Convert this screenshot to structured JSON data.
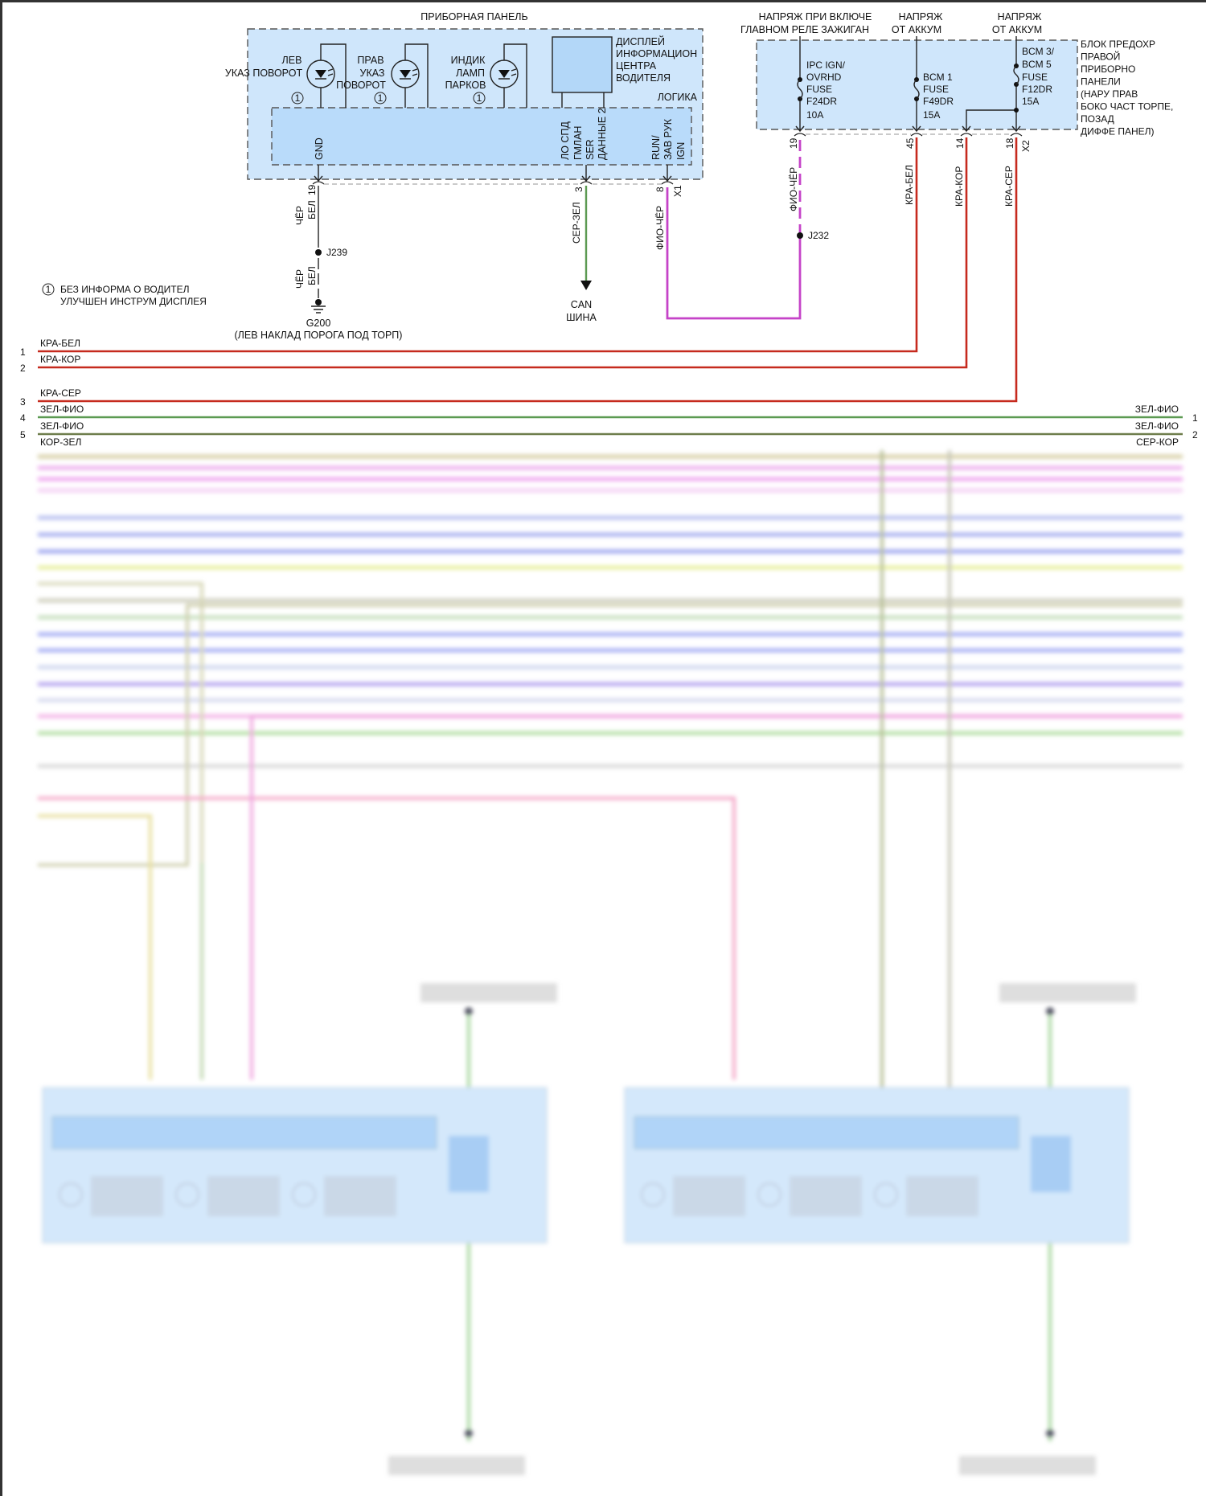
{
  "instrument_panel": {
    "title": "ПРИБОРНАЯ ПАНЕЛЬ",
    "left_turn": [
      "ЛЕВ",
      "УКАЗ ПОВОРОТ"
    ],
    "right_turn": [
      "ПРАВ",
      "УКАЗ",
      "ПОВОРОТ"
    ],
    "park_lamp": [
      "ИНДИК",
      "ЛАМП",
      "ПАРКОВ"
    ],
    "note_marker": "1",
    "display": [
      "ДИСПЛЕЙ",
      "ИНФОРМАЦИОН",
      "ЦЕНТРА",
      "ВОДИТЕЛЯ"
    ],
    "logic": "ЛОГИКА",
    "gnd": "GND",
    "gmlan": [
      "ЛО СПД",
      "ГМЛАН",
      "SER",
      "ДАННЫЕ 2"
    ],
    "run": [
      "RUN/",
      "ЗАВ РУК",
      "IGN"
    ],
    "pins": {
      "gnd": "19",
      "can": "3",
      "ign": "8",
      "connector": "X1"
    }
  },
  "fuse_block": {
    "headers": [
      [
        "НАПРЯЖ ПРИ ВКЛЮЧЕ",
        "ГЛАВНОМ РЕЛЕ ЗАЖИГАН"
      ],
      [
        "НАПРЯЖ",
        "ОТ АККУМ"
      ],
      [
        "НАПРЯЖ",
        "ОТ АККУМ"
      ]
    ],
    "fuses": [
      [
        "IPC IGN/",
        "OVRHD",
        "FUSE",
        "F24DR",
        "10A"
      ],
      [
        "BCM 1",
        "FUSE",
        "F49DR",
        "15A"
      ],
      [
        "BCM 3/",
        "BCM 5",
        "FUSE",
        "F12DR",
        "15A"
      ]
    ],
    "name": [
      "БЛОК ПРЕДОХР",
      "ПРАВОЙ",
      "ПРИБОРНО",
      "ПАНЕЛИ",
      "(НАРУ ПРАВ",
      "БОКО ЧАСТ ТОРПЕ,",
      "ПОЗАД",
      "ДИФФЕ ПАНЕЛ)"
    ],
    "pins": [
      "19",
      "45",
      "14",
      "18"
    ],
    "connector": "X2"
  },
  "wires": {
    "gnd_1": [
      "ЧЁР",
      "БЕЛ"
    ],
    "gnd_2": [
      "ЧЁР",
      "БЕЛ"
    ],
    "splice_gnd": "J239",
    "ground": "G200",
    "ground_location": "(ЛЕВ НАКЛАД ПОРОГА ПОД ТОРП)",
    "can_wire": "СЕР-ЗЕЛ",
    "can_bus": [
      "CAN",
      "ШИНА"
    ],
    "ign_wire": "ФИО-ЧЁР",
    "fuse_wire": "ФИО-ЧЁР",
    "splice_ign": "J232",
    "red_wires": [
      "КРА-БЕЛ",
      "КРА-КОР",
      "КРА-СЕР"
    ]
  },
  "footnote": {
    "marker": "1",
    "lines": [
      "БЕЗ ИНФОРМА О ВОДИТЕЛ",
      "УЛУЧШЕН ИНСТРУМ ДИСПЛЕЯ"
    ]
  },
  "left_bus": [
    {
      "num": "1",
      "label": "КРА-БЕЛ"
    },
    {
      "num": "2",
      "label": "КРА-КОР"
    },
    {
      "num": "3",
      "label": "КРА-СЕР"
    },
    {
      "num": "4",
      "label": "ЗЕЛ-ФИО"
    },
    {
      "num": "5",
      "label": "ЗЕЛ-ФИО"
    },
    {
      "label": "КОР-ЗЕЛ"
    }
  ],
  "right_bus": [
    {
      "num": "1",
      "label": "ЗЕЛ-ФИО"
    },
    {
      "num": "2",
      "label": "ЗЕЛ-ФИО"
    },
    {
      "label": "СЕР-КОР"
    }
  ],
  "colors": {
    "red_wire": "#c62a1e",
    "violet_wire": "#c543c8",
    "green_wire": "#5c9a52",
    "module_fill": "#cfe6fb"
  }
}
